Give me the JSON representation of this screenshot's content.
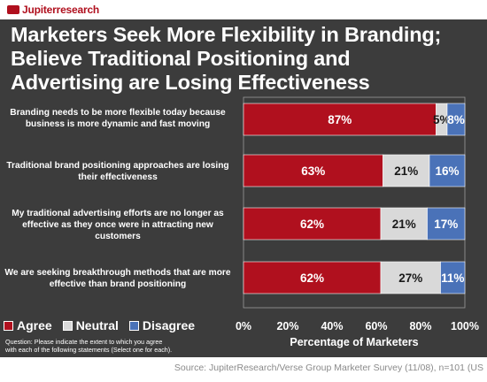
{
  "brand": {
    "name": "Jupiterresearch"
  },
  "title_lines": [
    "Marketers Seek More Flexibility in Branding;",
    "Believe Traditional Positioning and",
    "Advertising are Losing Effectiveness"
  ],
  "colors": {
    "agree": "#b0101e",
    "neutral": "#d9d9d9",
    "disagree": "#4a72b8",
    "background": "#3c3c3c"
  },
  "chart_data": {
    "type": "bar",
    "orientation": "horizontal",
    "stacked": true,
    "categories": [
      [
        "Branding needs to be more flexible today because",
        "business is more dynamic and fast moving"
      ],
      [
        "Traditional brand positioning approaches are losing",
        "their effectiveness"
      ],
      [
        "My traditional advertising efforts are no longer as",
        "effective as they once were in attracting new",
        "customers"
      ],
      [
        "We are seeking breakthrough methods that are more",
        "effective than brand positioning"
      ]
    ],
    "series": [
      {
        "name": "Agree",
        "values": [
          87,
          63,
          62,
          62
        ],
        "labels": [
          "87%",
          "63%",
          "62%",
          "62%"
        ]
      },
      {
        "name": "Neutral",
        "values": [
          5,
          21,
          21,
          27
        ],
        "labels": [
          "5%",
          "21%",
          "21%",
          "27%"
        ]
      },
      {
        "name": "Disagree",
        "values": [
          8,
          16,
          17,
          11
        ],
        "labels": [
          "8%",
          "16%",
          "17%",
          "11%"
        ]
      }
    ],
    "xlabel": "Percentage of Marketers",
    "xlim": [
      0,
      100
    ],
    "xticks": [
      "0%",
      "20%",
      "40%",
      "60%",
      "80%",
      "100%"
    ],
    "legend": "bottom-left",
    "grid": false
  },
  "question": [
    "Question:  Please indicate the extent to which you agree",
    "with each of the following statements (Select one for each)."
  ],
  "source": "Source: JupiterResearch/Verse Group Marketer Survey (11/08), n=101 (US"
}
